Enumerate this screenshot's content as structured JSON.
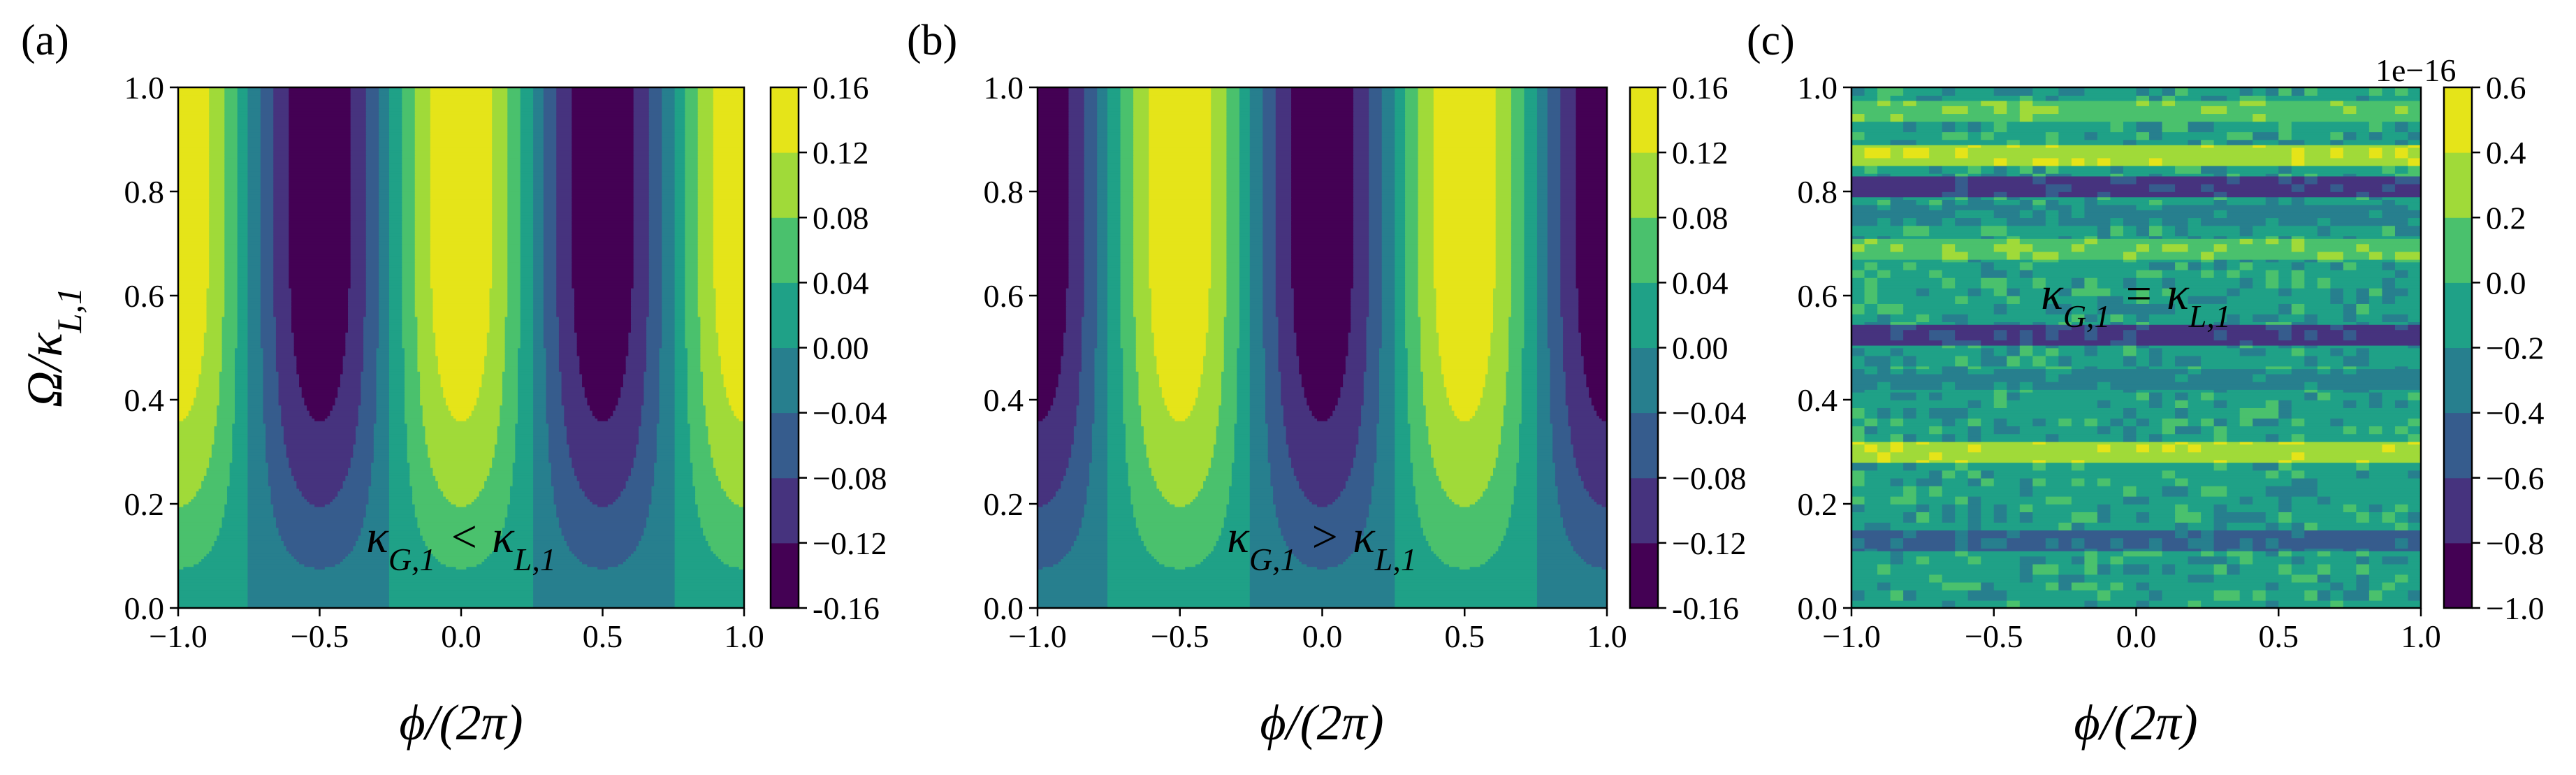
{
  "chart_data": [
    {
      "type": "contour",
      "panel_label": "(a)",
      "xlabel": "ϕ/(2π)",
      "ylabel": "Ω/κ_{L,1}",
      "ylabel_parts": {
        "main": "Ω/κ",
        "sub": "L,1"
      },
      "annotation": {
        "lhs": "κ",
        "lhs_sub": "G,1",
        "op": "<",
        "rhs": "κ",
        "rhs_sub": "L,1"
      },
      "xlim": [
        -1.0,
        1.0
      ],
      "ylim": [
        0.0,
        1.0
      ],
      "xticks": [
        "−1.0",
        "−0.5",
        "0.0",
        "0.5",
        "1.0"
      ],
      "yticks": [
        "0.0",
        "0.2",
        "0.4",
        "0.6",
        "0.8",
        "1.0"
      ],
      "field": "sign * 0.15 * y_factor(omega) * cos(2*pi*phi)",
      "sign": 1,
      "colorbar": {
        "levels": [
          -0.16,
          -0.12,
          -0.08,
          -0.04,
          0.0,
          0.04,
          0.08,
          0.12,
          0.16
        ],
        "ticks": [
          "-0.16",
          "−0.12",
          "−0.08",
          "−0.04",
          "0.00",
          "0.04",
          "0.08",
          "0.12",
          "0.16"
        ],
        "multiplier": ""
      }
    },
    {
      "type": "contour",
      "panel_label": "(b)",
      "xlabel": "ϕ/(2π)",
      "ylabel": "",
      "annotation": {
        "lhs": "κ",
        "lhs_sub": "G,1",
        "op": ">",
        "rhs": "κ",
        "rhs_sub": "L,1"
      },
      "xlim": [
        -1.0,
        1.0
      ],
      "ylim": [
        0.0,
        1.0
      ],
      "xticks": [
        "−1.0",
        "−0.5",
        "0.0",
        "0.5",
        "1.0"
      ],
      "yticks": [
        "0.0",
        "0.2",
        "0.4",
        "0.6",
        "0.8",
        "1.0"
      ],
      "field": "sign * 0.15 * y_factor(omega) * cos(2*pi*phi)",
      "sign": -1,
      "colorbar": {
        "levels": [
          -0.16,
          -0.12,
          -0.08,
          -0.04,
          0.0,
          0.04,
          0.08,
          0.12,
          0.16
        ],
        "ticks": [
          "-0.16",
          "−0.12",
          "−0.08",
          "−0.04",
          "0.00",
          "0.04",
          "0.08",
          "0.12",
          "0.16"
        ],
        "multiplier": ""
      }
    },
    {
      "type": "contour",
      "panel_label": "(c)",
      "xlabel": "ϕ/(2π)",
      "ylabel": "",
      "annotation": {
        "lhs": "κ",
        "lhs_sub": "G,1",
        "op": "=",
        "rhs": "κ",
        "rhs_sub": "L,1"
      },
      "xlim": [
        -1.0,
        1.0
      ],
      "ylim": [
        0.0,
        1.0
      ],
      "xticks": [
        "−1.0",
        "−0.5",
        "0.0",
        "0.5",
        "1.0"
      ],
      "yticks": [
        "0.0",
        "0.2",
        "0.4",
        "0.6",
        "0.8",
        "1.0"
      ],
      "field": "numerical noise ~ 1e-16",
      "colorbar": {
        "levels": [
          -1.0,
          -0.8,
          -0.6,
          -0.4,
          -0.2,
          0.0,
          0.2,
          0.4,
          0.6
        ],
        "ticks": [
          "−1.0",
          "−0.8",
          "−0.6",
          "−0.4",
          "−0.2",
          "0.0",
          "0.2",
          "0.4",
          "0.6"
        ],
        "multiplier": "1e−16"
      },
      "noise_bands": [
        {
          "omega": 0.955,
          "level_bin": 5
        },
        {
          "omega": 0.87,
          "level_bin": 6
        },
        {
          "omega": 0.81,
          "level_bin": 1
        },
        {
          "omega": 0.755,
          "level_bin": 3
        },
        {
          "omega": 0.69,
          "level_bin": 5
        },
        {
          "omega": 0.525,
          "level_bin": 1
        },
        {
          "omega": 0.44,
          "level_bin": 3
        },
        {
          "omega": 0.13,
          "level_bin": 2
        },
        {
          "omega": 0.3,
          "level_bin": 6
        }
      ]
    }
  ],
  "colormap": [
    "#440154",
    "#46337e",
    "#365c8d",
    "#277f8e",
    "#1fa187",
    "#4ac16d",
    "#a0da39",
    "#e5e419"
  ]
}
